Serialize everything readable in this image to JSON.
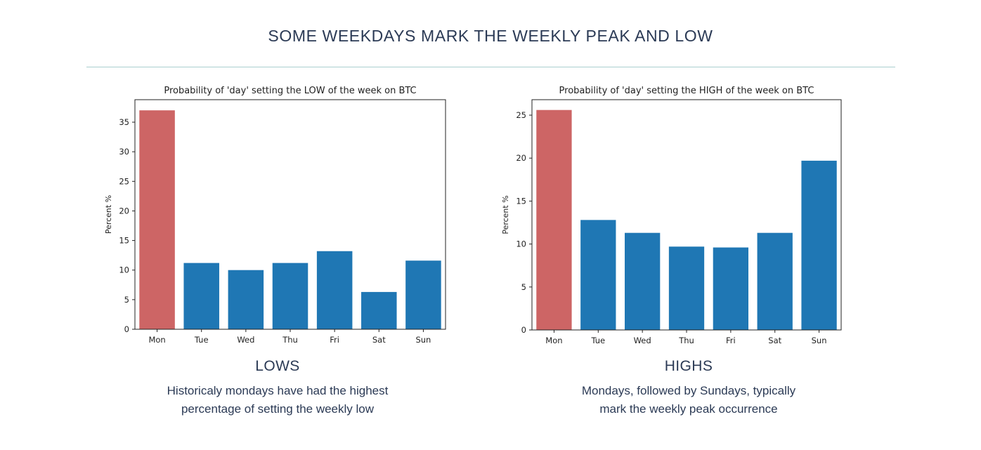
{
  "page": {
    "title": "SOME WEEKDAYS MARK THE WEEKLY PEAK AND LOW"
  },
  "captions": [
    {
      "heading": "LOWS",
      "line1": "Historicaly mondays have had the highest",
      "line2": "percentage of setting the weekly low"
    },
    {
      "heading": "HIGHS",
      "line1": "Mondays, followed by Sundays, typically",
      "line2": "mark the weekly peak occurrence"
    }
  ],
  "colors": {
    "highlight": "#cd6565",
    "bar": "#1f77b4"
  },
  "chart_data": [
    {
      "type": "bar",
      "title": "Probability of 'day' setting the LOW of the week on BTC",
      "xlabel": "",
      "ylabel": "Percent %",
      "categories": [
        "Mon",
        "Tue",
        "Wed",
        "Thu",
        "Fri",
        "Sat",
        "Sun"
      ],
      "values": [
        37.0,
        11.2,
        10.0,
        11.2,
        13.2,
        6.3,
        11.6
      ],
      "highlight_index": 0,
      "ylim": [
        0,
        38.8
      ],
      "yticks": [
        0,
        5,
        10,
        15,
        20,
        25,
        30,
        35
      ],
      "grid": false
    },
    {
      "type": "bar",
      "title": "Probability of 'day' setting the HIGH of the week on BTC",
      "xlabel": "",
      "ylabel": "Percent %",
      "categories": [
        "Mon",
        "Tue",
        "Wed",
        "Thu",
        "Fri",
        "Sat",
        "Sun"
      ],
      "values": [
        25.6,
        12.8,
        11.3,
        9.7,
        9.6,
        11.3,
        19.7
      ],
      "highlight_index": 0,
      "ylim": [
        0,
        26.8
      ],
      "yticks": [
        0,
        5,
        10,
        15,
        20,
        25
      ],
      "grid": false
    }
  ]
}
